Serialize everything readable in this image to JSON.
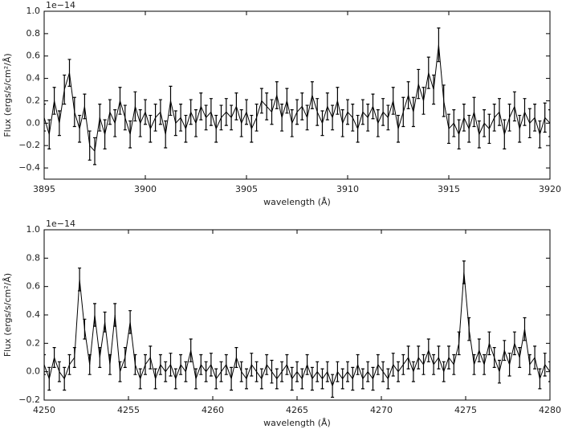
{
  "chart_data": [
    {
      "type": "errorbar",
      "color": "#000000",
      "ylabel": "Flux (ergs/s/cm²/Å)",
      "xlabel": "wavelength (Å)",
      "offset_text": "1e−14",
      "xlim": [
        3895,
        3920
      ],
      "xticks": [
        3895,
        3900,
        3905,
        3910,
        3915,
        3920
      ],
      "ylim": [
        -0.5,
        1.0
      ],
      "yticks": [
        {
          "value": -0.4,
          "label": "−0.4"
        },
        {
          "value": -0.2,
          "label": "−0.2"
        },
        {
          "value": 0,
          "label": "0.0"
        },
        0.2,
        0.4,
        0.6,
        0.8,
        {
          "value": 1.0,
          "label": "1.0"
        }
      ],
      "x": [
        3895,
        3895.25,
        3895.5,
        3895.75,
        3896,
        3896.25,
        3896.5,
        3896.75,
        3897,
        3897.25,
        3897.5,
        3897.75,
        3898,
        3898.25,
        3898.5,
        3898.75,
        3899,
        3899.25,
        3899.5,
        3899.75,
        3900,
        3900.25,
        3900.5,
        3900.75,
        3901,
        3901.25,
        3901.5,
        3901.75,
        3902,
        3902.25,
        3902.5,
        3902.75,
        3903,
        3903.25,
        3903.5,
        3903.75,
        3904,
        3904.25,
        3904.5,
        3904.75,
        3905,
        3905.25,
        3905.5,
        3905.75,
        3906,
        3906.25,
        3906.5,
        3906.75,
        3907,
        3907.25,
        3907.5,
        3907.75,
        3908,
        3908.25,
        3908.5,
        3908.75,
        3909,
        3909.25,
        3909.5,
        3909.75,
        3910,
        3910.25,
        3910.5,
        3910.75,
        3911,
        3911.25,
        3911.5,
        3911.75,
        3912,
        3912.25,
        3912.5,
        3912.75,
        3913,
        3913.25,
        3913.5,
        3913.75,
        3914,
        3914.25,
        3914.5,
        3914.75,
        3915,
        3915.25,
        3915.5,
        3915.75,
        3916,
        3916.25,
        3916.5,
        3916.75,
        3917,
        3917.25,
        3917.5,
        3917.75,
        3918,
        3918.25,
        3918.5,
        3918.75,
        3919,
        3919.25,
        3919.5,
        3919.75,
        3920
      ],
      "values": [
        0.05,
        -0.1,
        0.2,
        0.0,
        0.3,
        0.45,
        0.1,
        -0.05,
        0.15,
        -0.2,
        -0.25,
        0.05,
        -0.1,
        0.1,
        0.0,
        0.2,
        0.05,
        -0.1,
        0.15,
        0.0,
        0.1,
        -0.05,
        0.05,
        0.1,
        -0.1,
        0.2,
        0.0,
        0.05,
        -0.05,
        0.1,
        0.0,
        0.15,
        0.05,
        0.1,
        -0.05,
        0.05,
        0.1,
        0.05,
        0.15,
        0.0,
        0.1,
        -0.05,
        0.05,
        0.2,
        0.15,
        0.1,
        0.25,
        0.05,
        0.2,
        0.0,
        0.1,
        0.15,
        0.05,
        0.25,
        0.1,
        0.0,
        0.15,
        0.05,
        0.2,
        0.0,
        0.1,
        0.05,
        -0.05,
        0.1,
        0.05,
        0.15,
        0.0,
        0.1,
        0.05,
        0.2,
        -0.05,
        0.1,
        0.25,
        0.1,
        0.35,
        0.2,
        0.45,
        0.3,
        0.7,
        0.2,
        -0.05,
        0.0,
        -0.1,
        0.05,
        -0.05,
        0.1,
        -0.1,
        0.0,
        -0.05,
        0.05,
        0.1,
        -0.1,
        0.05,
        0.15,
        -0.05,
        0.1,
        0.0,
        0.05,
        -0.1,
        0.05,
        0.0
      ],
      "errors": [
        0.12,
        0.13,
        0.12,
        0.11,
        0.13,
        0.12,
        0.13,
        0.12,
        0.11,
        0.13,
        0.12,
        0.12,
        0.13,
        0.11,
        0.12,
        0.12,
        0.11,
        0.12,
        0.13,
        0.12,
        0.11,
        0.12,
        0.12,
        0.11,
        0.12,
        0.13,
        0.11,
        0.12,
        0.12,
        0.11,
        0.12,
        0.12,
        0.11,
        0.12,
        0.12,
        0.11,
        0.12,
        0.11,
        0.12,
        0.12,
        0.11,
        0.12,
        0.12,
        0.11,
        0.12,
        0.11,
        0.12,
        0.12,
        0.11,
        0.12,
        0.11,
        0.12,
        0.11,
        0.12,
        0.12,
        0.11,
        0.12,
        0.11,
        0.12,
        0.12,
        0.11,
        0.12,
        0.12,
        0.11,
        0.12,
        0.11,
        0.12,
        0.12,
        0.11,
        0.12,
        0.12,
        0.13,
        0.12,
        0.13,
        0.13,
        0.12,
        0.14,
        0.13,
        0.15,
        0.14,
        0.13,
        0.12,
        0.13,
        0.12,
        0.12,
        0.13,
        0.12,
        0.12,
        0.13,
        0.12,
        0.12,
        0.13,
        0.12,
        0.13,
        0.12,
        0.12,
        0.13,
        0.12,
        0.12,
        0.13,
        0.12
      ]
    },
    {
      "type": "errorbar",
      "color": "#000000",
      "ylabel": "Flux (ergs/s/cm²/Å)",
      "xlabel": "wavelength (Å)",
      "offset_text": "1e−14",
      "xlim": [
        4250,
        4280
      ],
      "xticks": [
        4250,
        4255,
        4260,
        4265,
        4270,
        4275,
        4280
      ],
      "ylim": [
        -0.2,
        1.0
      ],
      "yticks": [
        {
          "value": -0.2,
          "label": "−0.2"
        },
        {
          "value": 0,
          "label": "0.0"
        },
        0.2,
        0.4,
        0.6,
        0.8,
        {
          "value": 1.0,
          "label": "1.0"
        }
      ],
      "x": [
        4250,
        4250.3,
        4250.6,
        4250.9,
        4251.2,
        4251.5,
        4251.8,
        4252.1,
        4252.4,
        4252.7,
        4253,
        4253.3,
        4253.6,
        4253.9,
        4254.2,
        4254.5,
        4254.8,
        4255.1,
        4255.4,
        4255.7,
        4256,
        4256.3,
        4256.6,
        4256.9,
        4257.2,
        4257.5,
        4257.8,
        4258.1,
        4258.4,
        4258.7,
        4259,
        4259.3,
        4259.6,
        4259.9,
        4260.2,
        4260.5,
        4260.8,
        4261.1,
        4261.4,
        4261.7,
        4262,
        4262.3,
        4262.6,
        4262.9,
        4263.2,
        4263.5,
        4263.8,
        4264.1,
        4264.4,
        4264.7,
        4265,
        4265.3,
        4265.6,
        4265.9,
        4266.2,
        4266.5,
        4266.8,
        4267.1,
        4267.4,
        4267.7,
        4268,
        4268.3,
        4268.6,
        4268.9,
        4269.2,
        4269.5,
        4269.8,
        4270.1,
        4270.4,
        4270.7,
        4271,
        4271.3,
        4271.6,
        4271.9,
        4272.2,
        4272.5,
        4272.8,
        4273.1,
        4273.4,
        4273.7,
        4274,
        4274.3,
        4274.6,
        4274.9,
        4275.2,
        4275.5,
        4275.8,
        4276.1,
        4276.4,
        4276.7,
        4277,
        4277.3,
        4277.6,
        4277.9,
        4278.2,
        4278.5,
        4278.8,
        4279.1,
        4279.4,
        4279.7,
        4280
      ],
      "values": [
        0.05,
        -0.05,
        0.1,
        0.0,
        -0.05,
        0.05,
        0.1,
        0.65,
        0.3,
        0.05,
        0.4,
        0.1,
        0.35,
        0.05,
        0.4,
        0.0,
        0.1,
        0.35,
        0.05,
        -0.05,
        0.05,
        0.1,
        -0.05,
        0.05,
        0.0,
        0.05,
        -0.05,
        0.05,
        0.0,
        0.15,
        -0.05,
        0.05,
        0.0,
        0.05,
        -0.05,
        0.0,
        0.05,
        -0.05,
        0.1,
        0.0,
        -0.05,
        0.05,
        0.0,
        -0.05,
        0.05,
        0.0,
        -0.05,
        0.0,
        0.05,
        -0.05,
        0.0,
        -0.05,
        0.05,
        -0.05,
        0.0,
        -0.05,
        0.0,
        -0.1,
        0.0,
        -0.05,
        0.0,
        -0.05,
        0.05,
        -0.05,
        0.0,
        -0.05,
        0.05,
        0.0,
        -0.05,
        0.05,
        0.0,
        0.05,
        0.1,
        0.0,
        0.1,
        0.05,
        0.15,
        0.05,
        0.1,
        0.0,
        0.1,
        0.05,
        0.2,
        0.7,
        0.3,
        0.05,
        0.15,
        0.05,
        0.2,
        0.1,
        0.0,
        0.15,
        0.05,
        0.2,
        0.1,
        0.3,
        0.05,
        0.1,
        -0.05,
        0.05,
        0.0
      ],
      "errors": [
        0.07,
        0.08,
        0.07,
        0.07,
        0.08,
        0.07,
        0.07,
        0.08,
        0.07,
        0.07,
        0.08,
        0.07,
        0.07,
        0.07,
        0.08,
        0.07,
        0.07,
        0.08,
        0.07,
        0.07,
        0.07,
        0.08,
        0.07,
        0.07,
        0.07,
        0.08,
        0.07,
        0.07,
        0.07,
        0.08,
        0.07,
        0.07,
        0.07,
        0.08,
        0.07,
        0.07,
        0.07,
        0.08,
        0.07,
        0.07,
        0.07,
        0.08,
        0.07,
        0.07,
        0.07,
        0.08,
        0.07,
        0.07,
        0.07,
        0.08,
        0.07,
        0.07,
        0.07,
        0.08,
        0.07,
        0.07,
        0.07,
        0.08,
        0.07,
        0.07,
        0.07,
        0.08,
        0.07,
        0.07,
        0.07,
        0.08,
        0.07,
        0.07,
        0.07,
        0.08,
        0.07,
        0.07,
        0.08,
        0.07,
        0.08,
        0.07,
        0.08,
        0.07,
        0.08,
        0.07,
        0.08,
        0.07,
        0.08,
        0.08,
        0.08,
        0.07,
        0.08,
        0.07,
        0.08,
        0.07,
        0.08,
        0.07,
        0.08,
        0.08,
        0.07,
        0.08,
        0.07,
        0.08,
        0.07,
        0.08,
        0.07
      ]
    }
  ]
}
